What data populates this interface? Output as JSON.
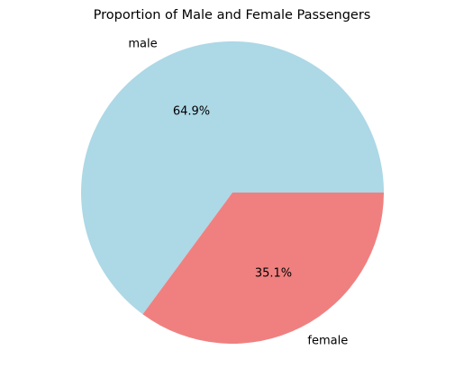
{
  "chart_data": {
    "type": "pie",
    "title": "Proportion of Male and Female Passengers",
    "start_angle_deg": 0,
    "direction": "counterclockwise",
    "legend": "none",
    "slices": [
      {
        "label": "male",
        "value": 64.9,
        "pct_label": "64.9%",
        "color": "#add8e6"
      },
      {
        "label": "female",
        "value": 35.1,
        "pct_label": "35.1%",
        "color": "#f08080"
      }
    ]
  }
}
